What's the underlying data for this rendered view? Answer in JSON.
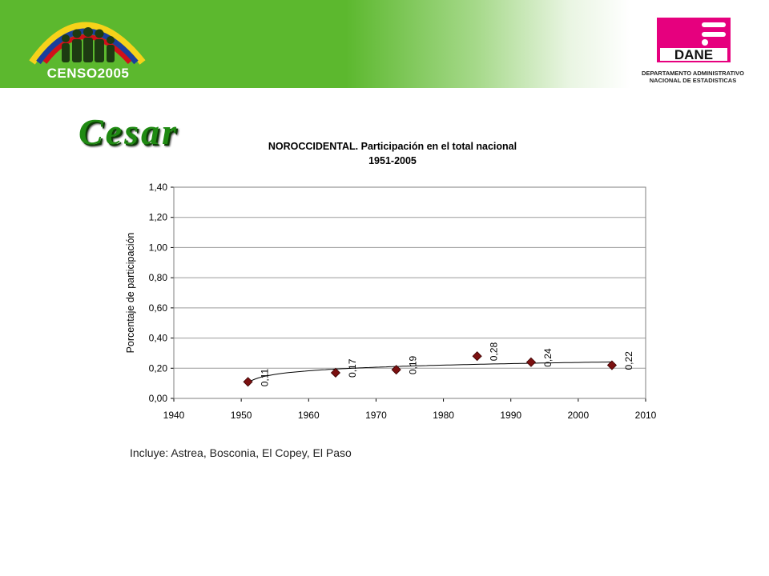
{
  "header": {
    "censo_logo_text": "CENSO2005",
    "dane_logo_text": "DANE",
    "dane_caption_line1": "DEPARTAMENTO ADMINISTRATIVO",
    "dane_caption_line2": "NACIONAL DE ESTADISTICAS",
    "colors": {
      "banner_green": "#5cb82e",
      "dane_magenta": "#e6007e"
    }
  },
  "page_title": "Cesar",
  "footnote": "Incluye: Astrea, Bosconia, El Copey, El Paso",
  "chart_data": {
    "type": "scatter",
    "title_line1": "NOROCCIDENTAL.  Participación en el total nacional",
    "title_line2": "1951-2005",
    "xlabel": "",
    "ylabel": "Porcentaje de participación",
    "xlim": [
      1940,
      2010
    ],
    "ylim": [
      0,
      1.4
    ],
    "x_ticks": [
      "1940",
      "1950",
      "1960",
      "1970",
      "1980",
      "1990",
      "2000",
      "2010"
    ],
    "y_ticks": [
      "0,00",
      "0,20",
      "0,40",
      "0,60",
      "0,80",
      "1,00",
      "1,20",
      "1,40"
    ],
    "grid": "horizontal",
    "series": [
      {
        "x": [
          1951,
          1964,
          1973,
          1985,
          1993,
          2005
        ],
        "values": [
          0.11,
          0.17,
          0.19,
          0.28,
          0.24,
          0.22
        ],
        "labels": [
          "0,11",
          "0,17",
          "0,19",
          "0,28",
          "0,24",
          "0,22"
        ],
        "marker": "diamond",
        "color": "#7b1010"
      }
    ],
    "trendline": {
      "type": "logarithmic",
      "color": "#000000"
    }
  }
}
